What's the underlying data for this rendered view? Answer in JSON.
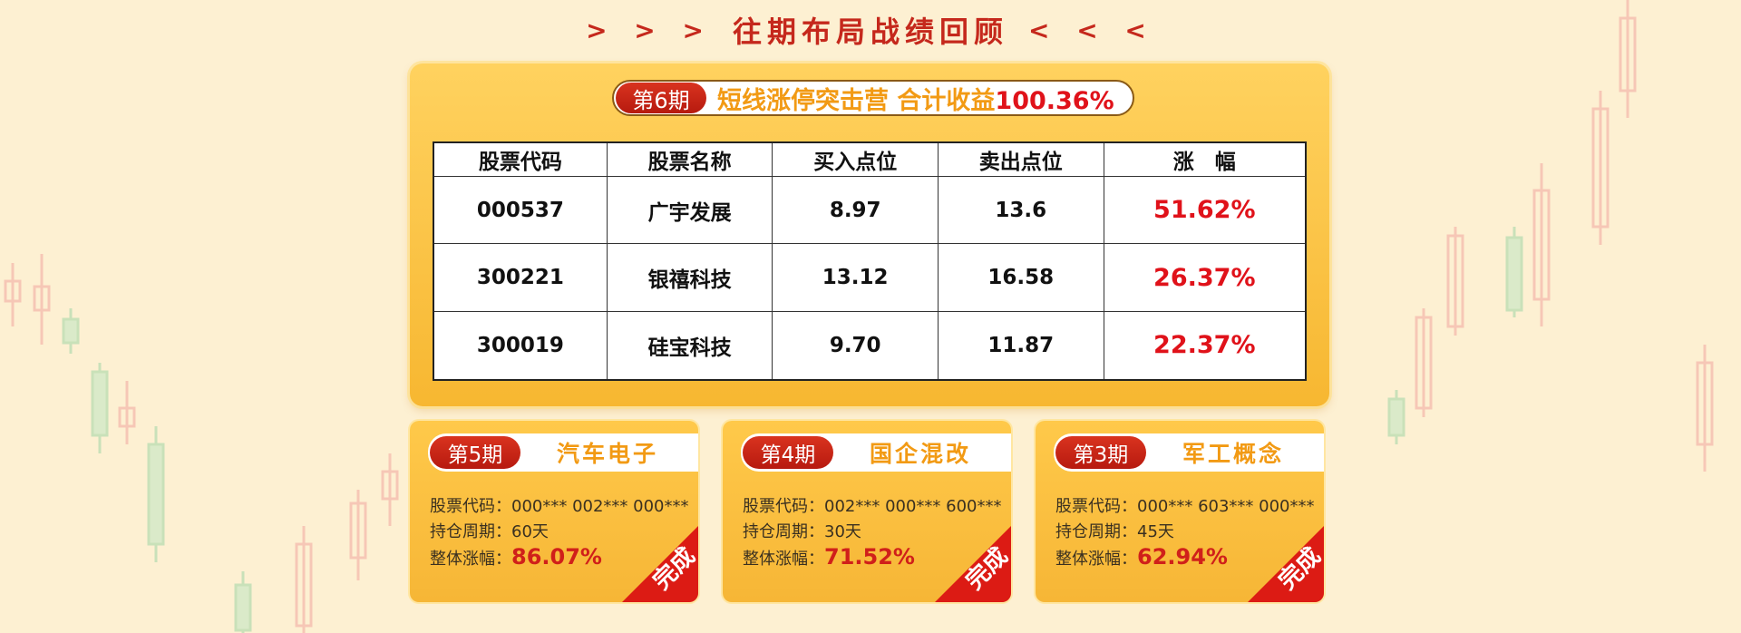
{
  "heading": {
    "left_arrows": "> > >",
    "title": "往期布局战绩回顾",
    "right_arrows": "< < <"
  },
  "main": {
    "period": "第6期",
    "title": "短线涨停突击营 合计收益",
    "total_gain": "100.36%",
    "table": {
      "headers": [
        "股票代码",
        "股票名称",
        "买入点位",
        "卖出点位",
        "涨　幅"
      ],
      "rows": [
        [
          "000537",
          "广宇发展",
          "8.97",
          "13.6",
          "51.62%"
        ],
        [
          "300221",
          "银禧科技",
          "13.12",
          "16.58",
          "26.37%"
        ],
        [
          "300019",
          "硅宝科技",
          "9.70",
          "11.87",
          "22.37%"
        ]
      ]
    }
  },
  "cards": [
    {
      "period": "第5期",
      "title": "汽车电子",
      "code_label": "股票代码：",
      "codes": "000*** 002*** 000***",
      "hold_label": "持仓周期：",
      "hold": "60天",
      "gain_label": "整体涨幅：",
      "gain": "86.07%",
      "badge": "完成"
    },
    {
      "period": "第4期",
      "title": "国企混改",
      "code_label": "股票代码：",
      "codes": "002*** 000*** 600***",
      "hold_label": "持仓周期：",
      "hold": "30天",
      "gain_label": "整体涨幅：",
      "gain": "71.52%",
      "badge": "完成"
    },
    {
      "period": "第3期",
      "title": "军工概念",
      "code_label": "股票代码：",
      "codes": "000*** 603*** 000***",
      "hold_label": "持仓周期：",
      "hold": "45天",
      "gain_label": "整体涨幅：",
      "gain": "62.94%",
      "badge": "完成"
    }
  ],
  "colors": {
    "accent_red": "#c5281c",
    "gain_red": "#e0121a",
    "panel_yellow": "#f7b731",
    "title_orange": "#f29a14"
  }
}
